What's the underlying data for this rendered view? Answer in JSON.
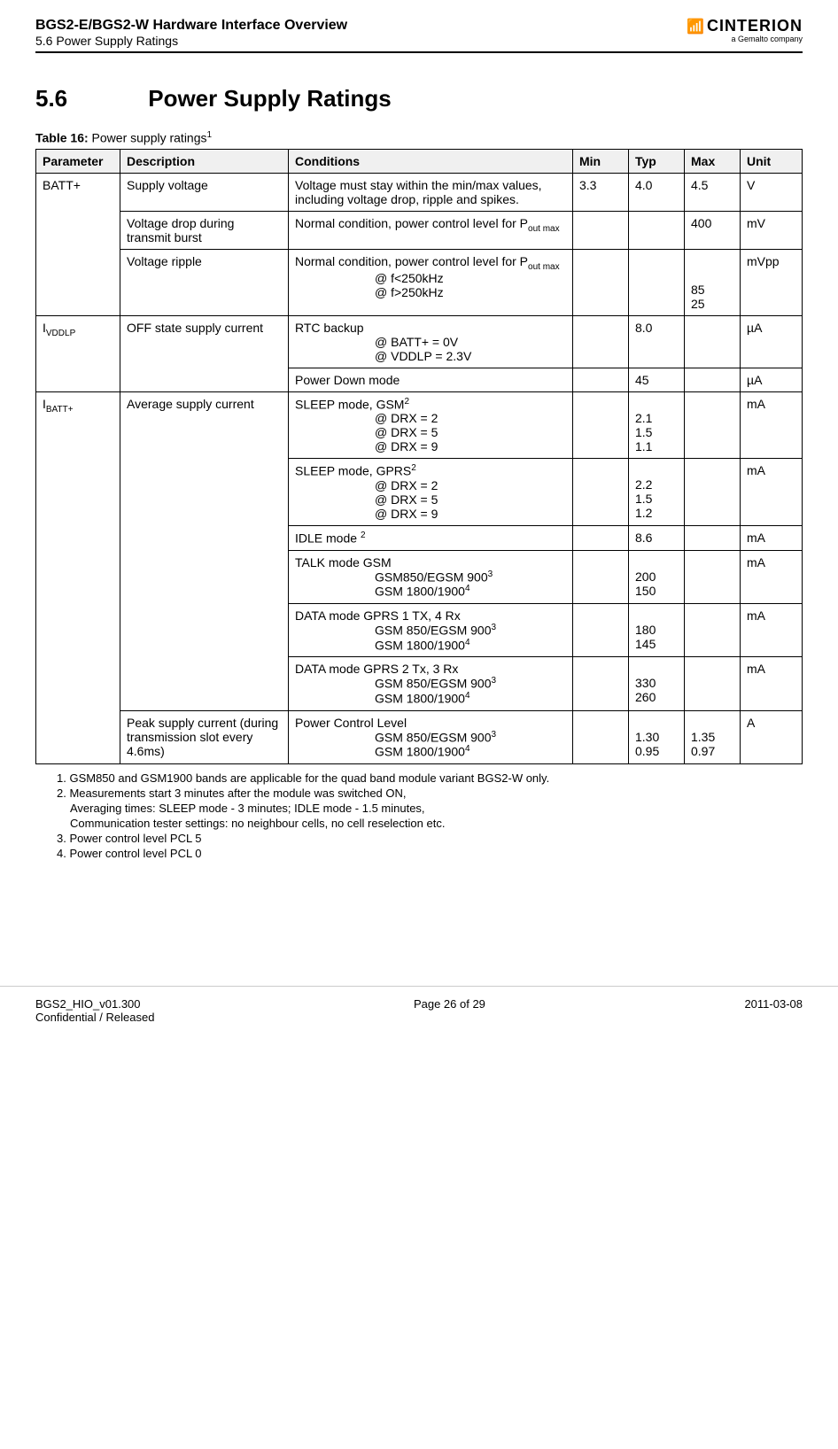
{
  "header": {
    "title": "BGS2-E/BGS2-W Hardware Interface Overview",
    "subtitle": "5.6 Power Supply Ratings",
    "logo_main": "CINTERION",
    "logo_sub": "a Gemalto company"
  },
  "section": {
    "number": "5.6",
    "title": "Power Supply Ratings"
  },
  "table": {
    "caption_prefix": "Table 16:",
    "caption": "Power supply ratings",
    "caption_sup": "1",
    "headers": {
      "parameter": "Parameter",
      "description": "Description",
      "conditions": "Conditions",
      "min": "Min",
      "typ": "Typ",
      "max": "Max",
      "unit": "Unit"
    },
    "rows": {
      "batt_param": "BATT+",
      "batt_supply_desc": "Supply voltage",
      "batt_supply_cond": "Voltage must stay within the min/max values, including voltage drop, ripple and spikes.",
      "batt_supply_min": "3.3",
      "batt_supply_typ": "4.0",
      "batt_supply_max": "4.5",
      "batt_supply_unit": "V",
      "batt_drop_desc": "Voltage drop during transmit burst",
      "batt_drop_cond_l1": "Normal condition, power control level for P",
      "batt_drop_cond_sub": "out max",
      "batt_drop_max": "400",
      "batt_drop_unit": "mV",
      "batt_ripple_desc": "Voltage ripple",
      "batt_ripple_cond_l1": "Normal condition, power control level for P",
      "batt_ripple_cond_sub": "out max",
      "batt_ripple_cond_i1": "@ f<250kHz",
      "batt_ripple_cond_i2": "@ f>250kHz",
      "batt_ripple_max1": "85",
      "batt_ripple_max2": "25",
      "batt_ripple_unit": "mVpp",
      "ivddlp_param": "I",
      "ivddlp_param_sub": "VDDLP",
      "ivddlp_desc": "OFF state supply current",
      "ivddlp_rtc_l1": "RTC backup",
      "ivddlp_rtc_i1": "@ BATT+ = 0V",
      "ivddlp_rtc_i2": "@ VDDLP = 2.3V",
      "ivddlp_rtc_typ": "8.0",
      "ivddlp_rtc_unit": "µA",
      "ivddlp_pd_cond": "Power Down mode",
      "ivddlp_pd_typ": "45",
      "ivddlp_pd_unit": "µA",
      "ibatt_param": "I",
      "ibatt_param_sub": "BATT+",
      "ibatt_desc": "Average supply current",
      "sleep_gsm_l1a": "SLEEP mode, GSM",
      "sleep_gsm_sup": "2",
      "sleep_gsm_i1": "@ DRX = 2",
      "sleep_gsm_i2": "@ DRX = 5",
      "sleep_gsm_i3": "@ DRX = 9",
      "sleep_gsm_t1": "2.1",
      "sleep_gsm_t2": "1.5",
      "sleep_gsm_t3": "1.1",
      "sleep_gsm_unit": "mA",
      "sleep_gprs_l1a": "SLEEP mode, GPRS",
      "sleep_gprs_sup": "2",
      "sleep_gprs_i1": "@ DRX = 2",
      "sleep_gprs_i2": "@ DRX = 5",
      "sleep_gprs_i3": "@ DRX = 9",
      "sleep_gprs_t1": "2.2",
      "sleep_gprs_t2": "1.5",
      "sleep_gprs_t3": "1.2",
      "sleep_gprs_unit": "mA",
      "idle_cond": "IDLE mode ",
      "idle_sup": "2",
      "idle_typ": "8.6",
      "idle_unit": "mA",
      "talk_l1": "TALK mode GSM",
      "talk_i1a": "GSM850/EGSM 900",
      "talk_i1_sup": "3",
      "talk_i2a": "GSM 1800/1900",
      "talk_i2_sup": "4",
      "talk_t1": "200",
      "talk_t2": "150",
      "talk_unit": "mA",
      "data1_l1": "DATA mode GPRS 1 TX, 4 Rx",
      "data1_i1a": "GSM 850/EGSM 900",
      "data1_i1_sup": "3",
      "data1_i2a": "GSM 1800/1900",
      "data1_i2_sup": "4",
      "data1_t1": "180",
      "data1_t2": "145",
      "data1_unit": "mA",
      "data2_l1": "DATA mode GPRS 2 Tx, 3 Rx",
      "data2_i1a": "GSM 850/EGSM 900",
      "data2_i1_sup": "3",
      "data2_i2a": "GSM 1800/1900",
      "data2_i2_sup": "4",
      "data2_t1": "330",
      "data2_t2": "260",
      "data2_unit": "mA",
      "peak_desc": "Peak supply current (during transmission slot every 4.6ms)",
      "peak_l1": "Power Control Level",
      "peak_i1a": "GSM 850/EGSM 900",
      "peak_i1_sup": "3",
      "peak_i2a": "GSM 1800/1900",
      "peak_i2_sup": "4",
      "peak_t1": "1.30",
      "peak_t2": "0.95",
      "peak_m1": "1.35",
      "peak_m2": "0.97",
      "peak_unit": "A"
    }
  },
  "footnotes": {
    "f1": "1. GSM850 and GSM1900 bands are applicable for the quad band module variant BGS2-W only.",
    "f2a": "2. Measurements start 3 minutes after the module was switched ON,",
    "f2b": "Averaging times: SLEEP mode - 3 minutes; IDLE mode - 1.5 minutes,",
    "f2c": "Communication tester settings: no neighbour cells, no cell reselection etc.",
    "f3": "3. Power control level PCL 5",
    "f4": "4. Power control level PCL 0"
  },
  "footer": {
    "left1": "BGS2_HIO_v01.300",
    "left2": "Confidential / Released",
    "center": "Page 26 of 29",
    "right": "2011-03-08"
  }
}
